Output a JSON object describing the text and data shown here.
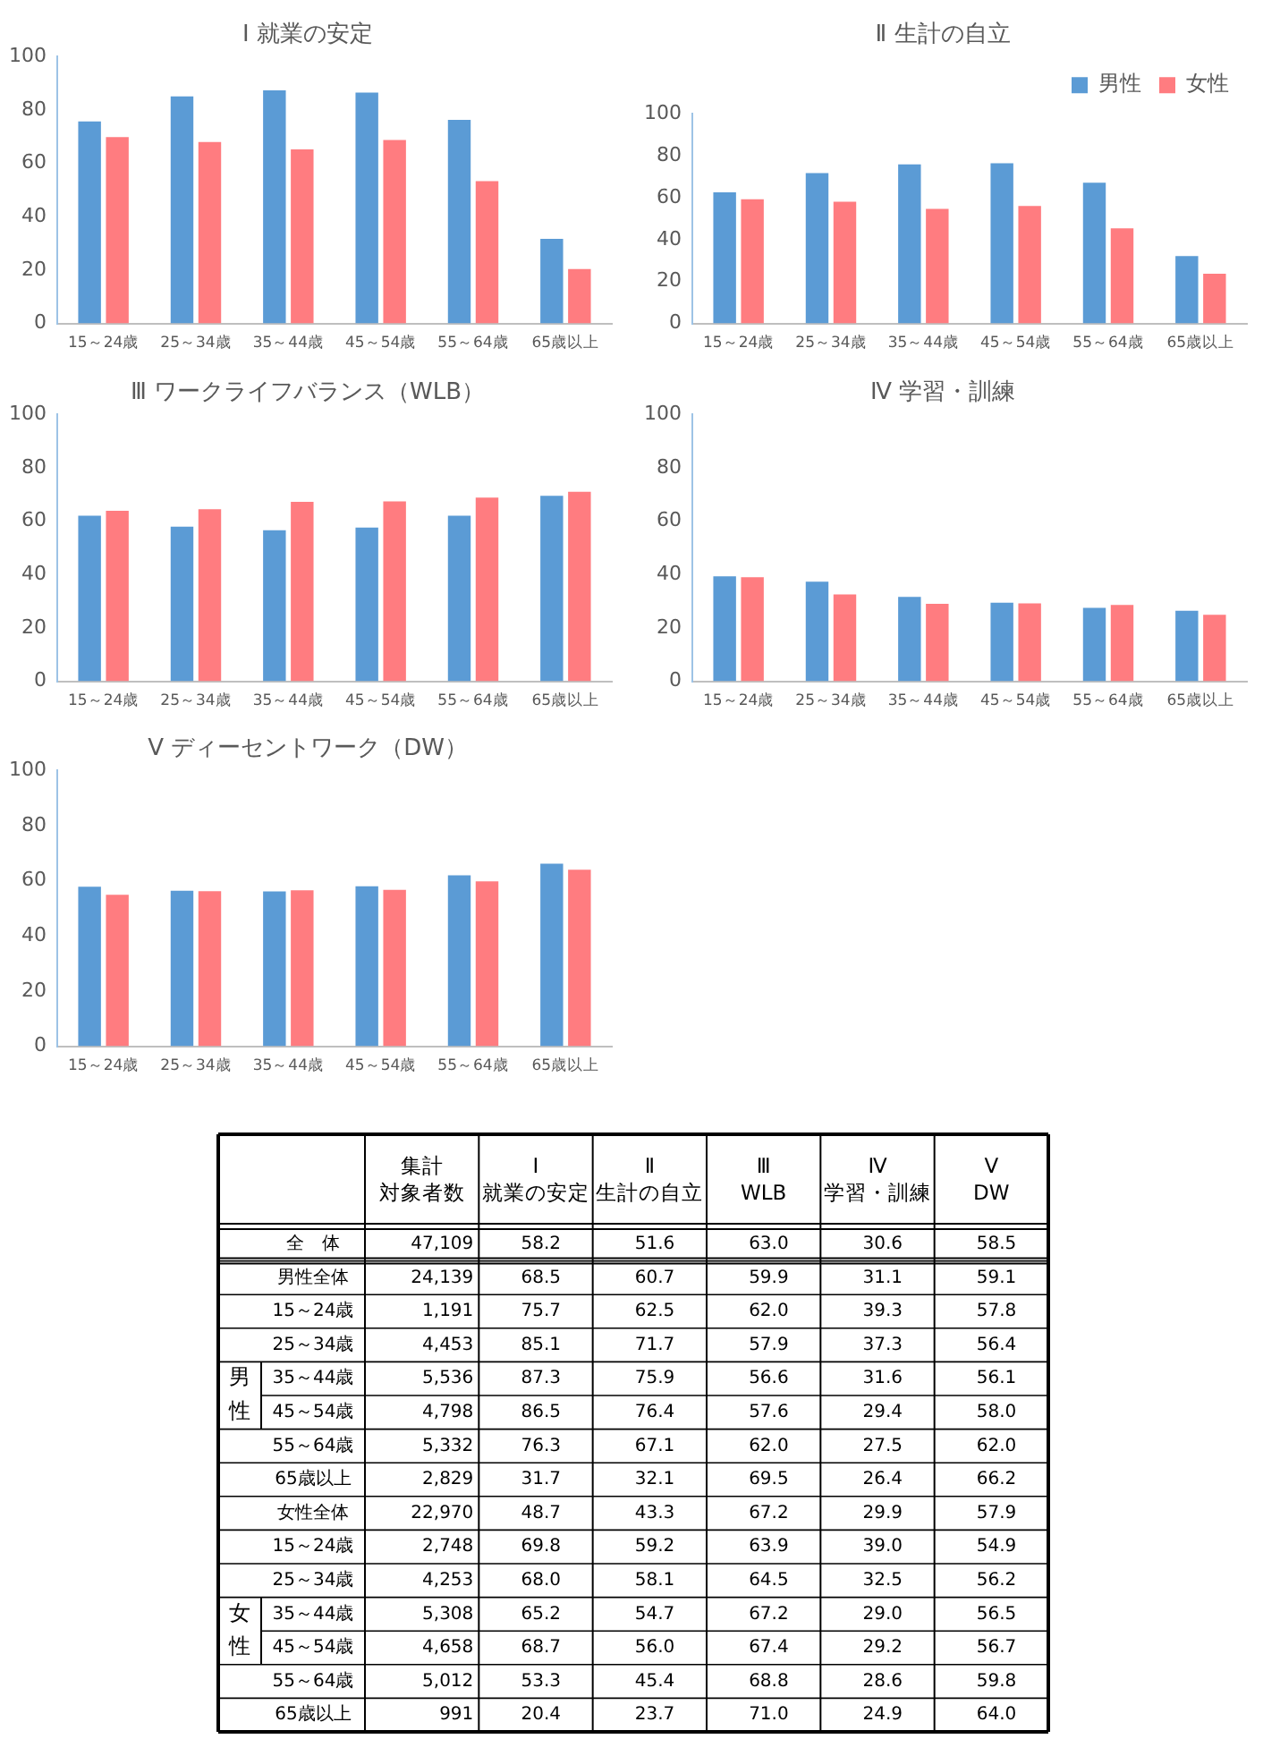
{
  "chart_data": [
    {
      "type": "bar",
      "title": "Ⅰ 就業の安定",
      "categories": [
        "15～24歳",
        "25～34歳",
        "35～44歳",
        "45～54歳",
        "55～64歳",
        "65歳以上"
      ],
      "ylim": [
        0,
        100
      ],
      "yticks": [
        0,
        20,
        40,
        60,
        80,
        100
      ],
      "grid": false,
      "legend": false,
      "series": [
        {
          "color": "#5b9bd5",
          "values": [
            75.7,
            85.1,
            87.3,
            86.5,
            76.3,
            31.7
          ]
        },
        {
          "color": "#ff7c80",
          "values": [
            69.8,
            68.0,
            65.2,
            68.7,
            53.3,
            20.4
          ]
        }
      ]
    },
    {
      "type": "bar",
      "title": "Ⅱ 生計の自立",
      "categories": [
        "15～24歳",
        "25～34歳",
        "35～44歳",
        "45～54歳",
        "55～64歳",
        "65歳以上"
      ],
      "ylim": [
        0,
        100
      ],
      "yticks": [
        0,
        20,
        40,
        60,
        80,
        100
      ],
      "grid": false,
      "legend": "top right",
      "series": [
        {
          "name": "男性",
          "color": "#5b9bd5",
          "values": [
            62.5,
            71.7,
            75.9,
            76.4,
            67.1,
            32.1
          ]
        },
        {
          "name": "女性",
          "color": "#ff7c80",
          "values": [
            59.2,
            58.1,
            54.7,
            56.0,
            45.4,
            23.7
          ]
        }
      ]
    },
    {
      "type": "bar",
      "title": "Ⅲ ワークライフバランス（WLB）",
      "categories": [
        "15～24歳",
        "25～34歳",
        "35～44歳",
        "45～54歳",
        "55～64歳",
        "65歳以上"
      ],
      "ylim": [
        0,
        100
      ],
      "yticks": [
        0,
        20,
        40,
        60,
        80,
        100
      ],
      "grid": false,
      "legend": false,
      "series": [
        {
          "color": "#5b9bd5",
          "values": [
            62.0,
            57.9,
            56.6,
            57.6,
            62.0,
            69.5
          ]
        },
        {
          "color": "#ff7c80",
          "values": [
            63.9,
            64.5,
            67.2,
            67.4,
            68.8,
            71.0
          ]
        }
      ]
    },
    {
      "type": "bar",
      "title": "Ⅳ 学習・訓練",
      "categories": [
        "15～24歳",
        "25～34歳",
        "35～44歳",
        "45～54歳",
        "55～64歳",
        "65歳以上"
      ],
      "ylim": [
        0,
        100
      ],
      "yticks": [
        0,
        20,
        40,
        60,
        80,
        100
      ],
      "grid": false,
      "legend": false,
      "series": [
        {
          "color": "#5b9bd5",
          "values": [
            39.3,
            37.3,
            31.6,
            29.4,
            27.5,
            26.4
          ]
        },
        {
          "color": "#ff7c80",
          "values": [
            39.0,
            32.5,
            29.0,
            29.2,
            28.6,
            24.9
          ]
        }
      ]
    },
    {
      "type": "bar",
      "title": "Ⅴ ディーセントワーク（DW）",
      "categories": [
        "15～24歳",
        "25～34歳",
        "35～44歳",
        "45～54歳",
        "55～64歳",
        "65歳以上"
      ],
      "ylim": [
        0,
        100
      ],
      "yticks": [
        0,
        20,
        40,
        60,
        80,
        100
      ],
      "grid": false,
      "legend": false,
      "series": [
        {
          "color": "#5b9bd5",
          "values": [
            57.8,
            56.4,
            56.1,
            58.0,
            62.0,
            66.2
          ]
        },
        {
          "color": "#ff7c80",
          "values": [
            54.9,
            56.2,
            56.5,
            56.7,
            59.8,
            64.0
          ]
        }
      ]
    },
    {
      "type": "heatmap",
      "categories": [
        "集計対象者数",
        "Ⅰ\n就業の安定",
        "Ⅱ\n生計の自立",
        "Ⅲ\nWLB",
        "Ⅳ\n学習・訓練",
        "Ⅴ\nDW"
      ],
      "y_categories": [
        "全　体",
        "男性全体",
        "15～24歳",
        "25～34歳",
        "35～44歳",
        "45～54歳",
        "55～64歳",
        "65歳以上",
        "女性全体",
        "15～24歳",
        "25～34歳",
        "35～44歳",
        "45～54歳",
        "55～64歳",
        "65歳以上"
      ],
      "y2_categories": [
        null,
        null,
        null,
        null,
        "男性",
        null,
        null,
        null,
        null,
        null,
        null,
        "女性",
        null,
        null,
        null
      ],
      "cells": [
        [
          47109,
          58.2,
          51.6,
          63.0,
          30.6,
          58.5
        ],
        [
          24139,
          68.5,
          60.7,
          59.9,
          31.1,
          59.1
        ],
        [
          1191,
          75.7,
          62.5,
          62.0,
          39.3,
          57.8
        ],
        [
          4453,
          85.1,
          71.7,
          57.9,
          37.3,
          56.4
        ],
        [
          5536,
          87.3,
          75.9,
          56.6,
          31.6,
          56.1
        ],
        [
          4798,
          86.5,
          76.4,
          57.6,
          29.4,
          58.0
        ],
        [
          5332,
          76.3,
          67.1,
          62.0,
          27.5,
          62.0
        ],
        [
          2829,
          31.7,
          32.1,
          69.5,
          26.4,
          66.2
        ],
        [
          22970,
          48.7,
          43.3,
          67.2,
          29.9,
          57.9
        ],
        [
          2748,
          69.8,
          59.2,
          63.9,
          39.0,
          54.9
        ],
        [
          4253,
          68.0,
          58.1,
          64.5,
          32.5,
          56.2
        ],
        [
          5308,
          65.2,
          54.7,
          67.2,
          29.0,
          56.5
        ],
        [
          4658,
          68.7,
          56.0,
          67.4,
          29.2,
          56.7
        ],
        [
          5012,
          53.3,
          45.4,
          68.8,
          28.6,
          59.8
        ],
        [
          991,
          20.4,
          23.7,
          71.0,
          24.9,
          64.0
        ]
      ],
      "cell_labels": [
        [
          "47,109",
          "58.2",
          "51.6",
          "63.0",
          "30.6",
          "58.5"
        ],
        [
          "24,139",
          "68.5",
          "60.7",
          "59.9",
          "31.1",
          "59.1"
        ],
        [
          "1,191",
          "75.7",
          "62.5",
          "62.0",
          "39.3",
          "57.8"
        ],
        [
          "4,453",
          "85.1",
          "71.7",
          "57.9",
          "37.3",
          "56.4"
        ],
        [
          "5,536",
          "87.3",
          "75.9",
          "56.6",
          "31.6",
          "56.1"
        ],
        [
          "4,798",
          "86.5",
          "76.4",
          "57.6",
          "29.4",
          "58.0"
        ],
        [
          "5,332",
          "76.3",
          "67.1",
          "62.0",
          "27.5",
          "62.0"
        ],
        [
          "2,829",
          "31.7",
          "32.1",
          "69.5",
          "26.4",
          "66.2"
        ],
        [
          "22,970",
          "48.7",
          "43.3",
          "67.2",
          "29.9",
          "57.9"
        ],
        [
          "2,748",
          "69.8",
          "59.2",
          "63.9",
          "39.0",
          "54.9"
        ],
        [
          "4,253",
          "68.0",
          "58.1",
          "64.5",
          "32.5",
          "56.2"
        ],
        [
          "5,308",
          "65.2",
          "54.7",
          "67.2",
          "29.0",
          "56.5"
        ],
        [
          "4,658",
          "68.7",
          "56.0",
          "67.4",
          "29.2",
          "56.7"
        ],
        [
          "5,012",
          "53.3",
          "45.4",
          "68.8",
          "28.6",
          "59.8"
        ],
        [
          "991",
          "20.4",
          "23.7",
          "71.0",
          "24.9",
          "64.0"
        ]
      ]
    }
  ]
}
